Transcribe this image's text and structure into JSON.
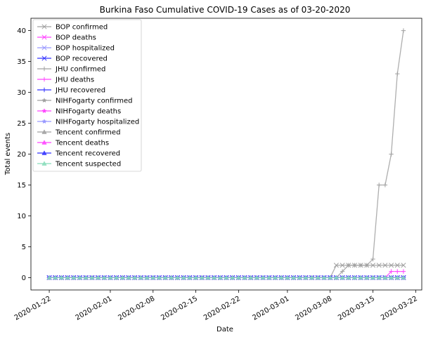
{
  "chart_data": {
    "type": "line",
    "title": "Burkina Faso Cumulative COVID-19 Cases as of 03-20-2020",
    "xlabel": "Date",
    "ylabel": "Total events",
    "x_type": "date",
    "x_start": "2020-01-22",
    "x_end": "2020-03-20",
    "xlim": [
      "2020-01-19",
      "2020-03-23"
    ],
    "ylim": [
      -2,
      42
    ],
    "xticks": [
      "2020-01-22",
      "2020-02-01",
      "2020-02-08",
      "2020-02-15",
      "2020-02-22",
      "2020-03-01",
      "2020-03-08",
      "2020-03-15",
      "2020-03-22"
    ],
    "yticks": [
      0,
      5,
      10,
      15,
      20,
      25,
      30,
      35,
      40
    ],
    "grid": false,
    "legend_position": "upper-left",
    "series": [
      {
        "name": "BOP confirmed",
        "color": "#a0a0a0",
        "marker": "x",
        "points": [
          [
            "2020-01-22",
            0
          ],
          [
            "2020-03-08",
            0
          ],
          [
            "2020-03-09",
            2
          ],
          [
            "2020-03-10",
            2
          ],
          [
            "2020-03-11",
            2
          ],
          [
            "2020-03-12",
            2
          ],
          [
            "2020-03-13",
            2
          ],
          [
            "2020-03-14",
            2
          ],
          [
            "2020-03-15",
            2
          ],
          [
            "2020-03-16",
            2
          ],
          [
            "2020-03-17",
            2
          ],
          [
            "2020-03-18",
            2
          ],
          [
            "2020-03-19",
            2
          ],
          [
            "2020-03-20",
            2
          ]
        ]
      },
      {
        "name": "BOP deaths",
        "color": "#ff44ff",
        "marker": "x",
        "points": [
          [
            "2020-01-22",
            0
          ],
          [
            "2020-03-20",
            0
          ]
        ]
      },
      {
        "name": "BOP hospitalized",
        "color": "#9999ff",
        "marker": "x",
        "points": [
          [
            "2020-01-22",
            0
          ],
          [
            "2020-03-20",
            0
          ]
        ]
      },
      {
        "name": "BOP recovered",
        "color": "#3333ff",
        "marker": "x",
        "points": [
          [
            "2020-01-22",
            0
          ],
          [
            "2020-03-20",
            0
          ]
        ]
      },
      {
        "name": "JHU confirmed",
        "color": "#a0a0a0",
        "marker": "+",
        "points": [
          [
            "2020-01-22",
            0
          ],
          [
            "2020-03-09",
            0
          ],
          [
            "2020-03-10",
            1
          ],
          [
            "2020-03-11",
            2
          ],
          [
            "2020-03-12",
            2
          ],
          [
            "2020-03-13",
            2
          ],
          [
            "2020-03-14",
            2
          ],
          [
            "2020-03-15",
            3
          ],
          [
            "2020-03-16",
            15
          ],
          [
            "2020-03-17",
            15
          ],
          [
            "2020-03-18",
            20
          ],
          [
            "2020-03-19",
            33
          ],
          [
            "2020-03-20",
            40
          ]
        ]
      },
      {
        "name": "JHU deaths",
        "color": "#ff44ff",
        "marker": "+",
        "points": [
          [
            "2020-01-22",
            0
          ],
          [
            "2020-03-17",
            0
          ],
          [
            "2020-03-18",
            1
          ],
          [
            "2020-03-19",
            1
          ],
          [
            "2020-03-20",
            1
          ]
        ]
      },
      {
        "name": "JHU recovered",
        "color": "#3333ff",
        "marker": "+",
        "points": [
          [
            "2020-01-22",
            0
          ],
          [
            "2020-03-20",
            0
          ]
        ]
      },
      {
        "name": "NIHFogarty confirmed",
        "color": "#a0a0a0",
        "marker": "*",
        "points": [
          [
            "2020-01-22",
            0
          ],
          [
            "2020-03-20",
            0
          ]
        ]
      },
      {
        "name": "NIHFogarty deaths",
        "color": "#ff44ff",
        "marker": "*",
        "points": [
          [
            "2020-01-22",
            0
          ],
          [
            "2020-03-20",
            0
          ]
        ]
      },
      {
        "name": "NIHFogarty hospitalized",
        "color": "#9999ff",
        "marker": "*",
        "points": [
          [
            "2020-01-22",
            0
          ],
          [
            "2020-03-20",
            0
          ]
        ]
      },
      {
        "name": "Tencent confirmed",
        "color": "#a0a0a0",
        "marker": "^",
        "points": [
          [
            "2020-01-22",
            0
          ],
          [
            "2020-03-20",
            0
          ]
        ]
      },
      {
        "name": "Tencent deaths",
        "color": "#ff44ff",
        "marker": "^",
        "points": [
          [
            "2020-01-22",
            0
          ],
          [
            "2020-03-20",
            0
          ]
        ]
      },
      {
        "name": "Tencent recovered",
        "color": "#3333ff",
        "marker": "^",
        "points": [
          [
            "2020-01-22",
            0
          ],
          [
            "2020-03-20",
            0
          ]
        ]
      },
      {
        "name": "Tencent suspected",
        "color": "#88ddbb",
        "marker": "^",
        "points": [
          [
            "2020-01-22",
            0
          ],
          [
            "2020-03-20",
            0
          ]
        ]
      }
    ]
  }
}
